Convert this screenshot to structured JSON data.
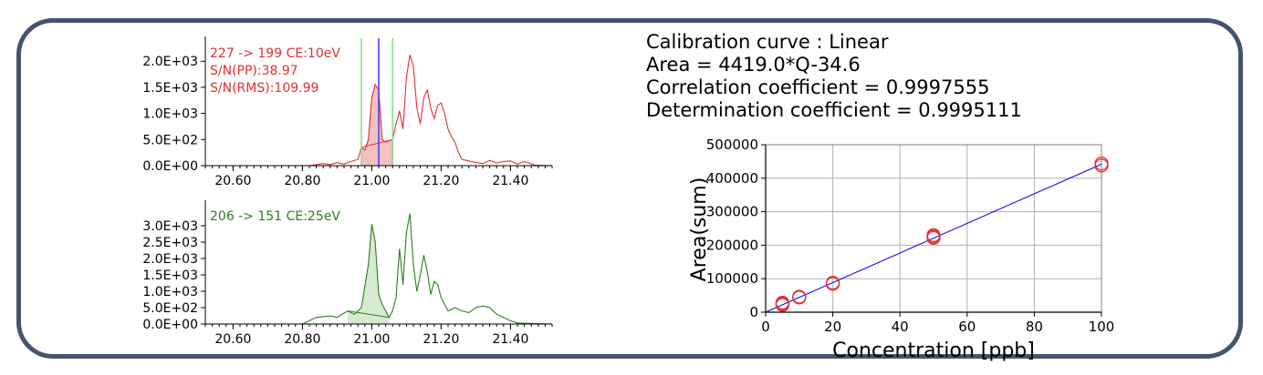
{
  "calibration_info": {
    "line1": "Calibration curve : Linear",
    "line2": "Area = 4419.0*Q-34.6",
    "line3": "Correlation coefficient = 0.9997555",
    "line4": "Determination coefficient = 0.9995111"
  },
  "chart_data": [
    {
      "type": "line",
      "title": "",
      "annotations": [
        "227 -> 199 CE:10eV",
        "S/N(PP):38.97",
        "S/N(RMS):109.99"
      ],
      "xlim": [
        20.52,
        21.52
      ],
      "ylim": [
        0,
        2300
      ],
      "x_ticks": [
        "20.60",
        "20.80",
        "21.00",
        "21.20",
        "21.40"
      ],
      "x_tick_values": [
        20.6,
        20.8,
        21.0,
        21.2,
        21.4
      ],
      "y_ticks": [
        "0.0E+00",
        "5.0E+02",
        "1.0E+03",
        "1.5E+03",
        "2.0E+03"
      ],
      "y_tick_values": [
        0,
        500,
        1000,
        1500,
        2000
      ],
      "color": "#e03030",
      "fill_color": "#f4c0c0",
      "vertical_markers": {
        "green": [
          20.97,
          21.06
        ],
        "blue": [
          21.02
        ]
      },
      "peak_fill_range": [
        20.97,
        21.06
      ],
      "x": [
        20.52,
        20.82,
        20.84,
        20.86,
        20.88,
        20.9,
        20.92,
        20.94,
        20.96,
        20.97,
        20.98,
        20.99,
        21.0,
        21.01,
        21.02,
        21.03,
        21.04,
        21.05,
        21.06,
        21.07,
        21.08,
        21.09,
        21.1,
        21.11,
        21.12,
        21.13,
        21.14,
        21.15,
        21.16,
        21.17,
        21.18,
        21.19,
        21.2,
        21.21,
        21.22,
        21.23,
        21.24,
        21.25,
        21.26,
        21.28,
        21.3,
        21.32,
        21.34,
        21.36,
        21.38,
        21.4,
        21.42,
        21.44,
        21.47,
        21.52
      ],
      "y": [
        0,
        0,
        20,
        40,
        20,
        60,
        30,
        80,
        120,
        350,
        300,
        500,
        1300,
        1550,
        1450,
        500,
        450,
        480,
        500,
        800,
        1050,
        700,
        1700,
        2120,
        1900,
        1100,
        800,
        1300,
        1450,
        1100,
        900,
        1150,
        1200,
        1000,
        700,
        550,
        450,
        250,
        120,
        90,
        60,
        40,
        100,
        50,
        80,
        90,
        30,
        80,
        10,
        0
      ],
      "series": [
        {
          "values": "y"
        }
      ]
    },
    {
      "type": "line",
      "title": "",
      "annotations": [
        "206 -> 151 CE:25eV"
      ],
      "xlim": [
        20.52,
        21.52
      ],
      "ylim": [
        0,
        3500
      ],
      "x_ticks": [
        "20.60",
        "20.80",
        "21.00",
        "21.20",
        "21.40"
      ],
      "x_tick_values": [
        20.6,
        20.8,
        21.0,
        21.2,
        21.4
      ],
      "y_ticks": [
        "0.0E+00",
        "5.0E+02",
        "1.0E+03",
        "1.5E+03",
        "2.0E+03",
        "2.5E+03",
        "3.0E+03"
      ],
      "y_tick_values": [
        0,
        500,
        1000,
        1500,
        2000,
        2500,
        3000
      ],
      "color": "#2e7d1e",
      "fill_color": "#d5ead0",
      "peak_fill_range": [
        20.93,
        21.05
      ],
      "x": [
        20.52,
        20.8,
        20.84,
        20.88,
        20.9,
        20.93,
        20.95,
        20.97,
        20.99,
        21.0,
        21.01,
        21.02,
        21.03,
        21.04,
        21.05,
        21.06,
        21.07,
        21.08,
        21.09,
        21.1,
        21.11,
        21.12,
        21.13,
        21.14,
        21.15,
        21.16,
        21.17,
        21.18,
        21.19,
        21.2,
        21.22,
        21.24,
        21.26,
        21.28,
        21.3,
        21.32,
        21.34,
        21.36,
        21.38,
        21.4,
        21.42,
        21.52
      ],
      "y": [
        0,
        0,
        200,
        250,
        200,
        400,
        300,
        500,
        1800,
        3050,
        2500,
        900,
        600,
        400,
        200,
        400,
        800,
        2300,
        1200,
        2800,
        3370,
        1800,
        1000,
        1500,
        2100,
        1600,
        900,
        1300,
        1200,
        800,
        400,
        500,
        400,
        350,
        500,
        550,
        500,
        300,
        200,
        100,
        30,
        0
      ],
      "series": [
        {
          "values": "y"
        }
      ]
    },
    {
      "type": "scatter",
      "title": "",
      "xlabel": "Concentration [ppb]",
      "ylabel": "Area(sum)",
      "xlim": [
        0,
        100
      ],
      "ylim": [
        0,
        500000
      ],
      "x_ticks": [
        "0",
        "20",
        "40",
        "60",
        "80",
        "100"
      ],
      "x_tick_values": [
        0,
        20,
        40,
        60,
        80,
        100
      ],
      "y_ticks": [
        "0",
        "100000",
        "200000",
        "300000",
        "400000",
        "500000"
      ],
      "y_tick_values": [
        0,
        100000,
        200000,
        300000,
        400000,
        500000
      ],
      "grid": true,
      "fit_line": {
        "slope": 4419.0,
        "intercept": -34.6,
        "color": "#0000ff"
      },
      "marker_color": "#e03030",
      "points": [
        {
          "x": 5,
          "y": 22000
        },
        {
          "x": 5,
          "y": 25000
        },
        {
          "x": 5,
          "y": 28000
        },
        {
          "x": 10,
          "y": 44000
        },
        {
          "x": 10,
          "y": 46000
        },
        {
          "x": 20,
          "y": 85000
        },
        {
          "x": 20,
          "y": 88000
        },
        {
          "x": 50,
          "y": 222000
        },
        {
          "x": 50,
          "y": 226000
        },
        {
          "x": 50,
          "y": 230000
        },
        {
          "x": 100,
          "y": 438000
        },
        {
          "x": 100,
          "y": 444000
        }
      ]
    }
  ]
}
